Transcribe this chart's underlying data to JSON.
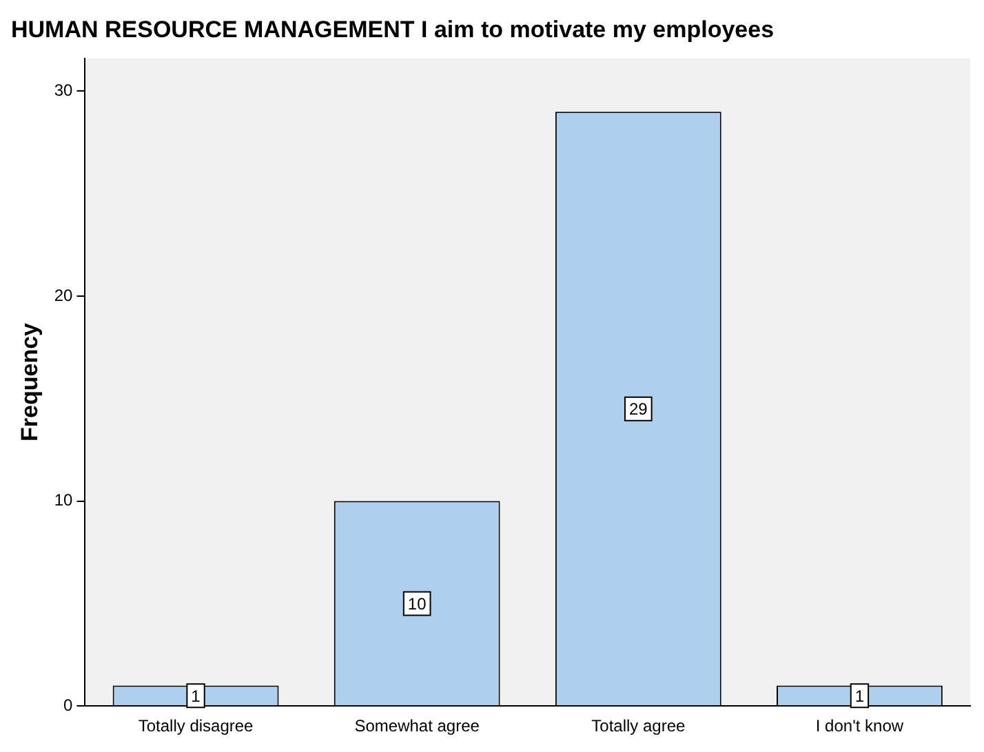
{
  "chart_data": {
    "type": "bar",
    "title": "HUMAN RESOURCE MANAGEMENT I aim to motivate my employees",
    "ylabel": "Frequency",
    "categories": [
      "Totally disagree",
      "Somewhat agree",
      "Totally agree",
      "I don't know"
    ],
    "values": [
      1,
      10,
      29,
      1
    ],
    "color": "#aed0ee",
    "ylim": [
      0,
      31.6
    ],
    "yticks": [
      0,
      10,
      20,
      30
    ],
    "grid": false,
    "legend": false,
    "data_labels": true
  }
}
